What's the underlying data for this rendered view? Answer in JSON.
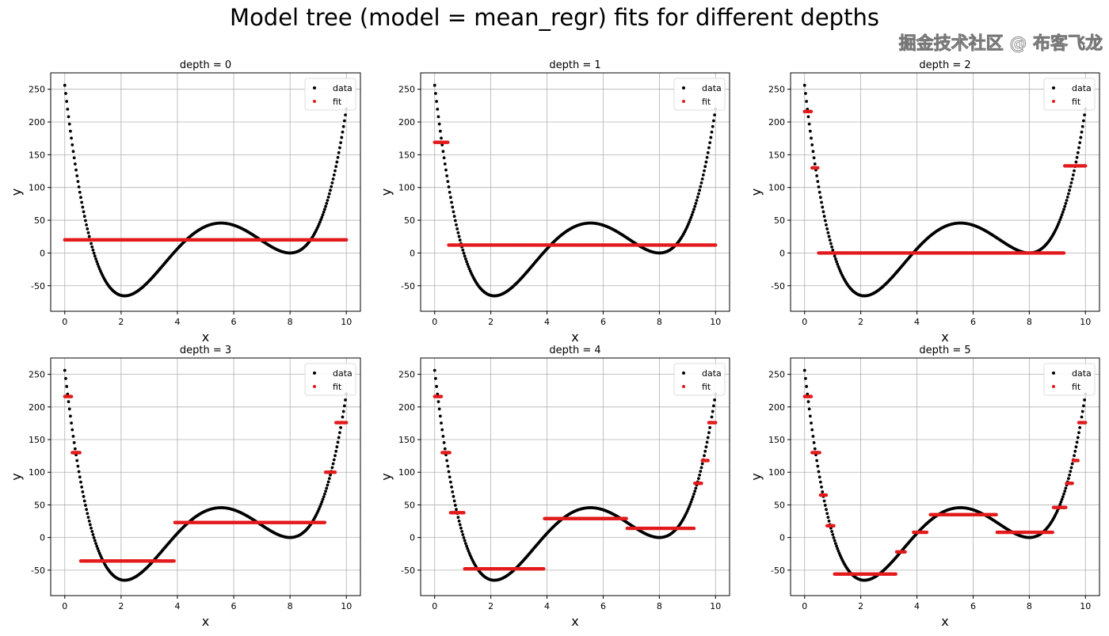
{
  "chart_data": {
    "type": "scatter",
    "title": "Model tree (model = mean_regr) fits for different depths",
    "data_function": {
      "form": "y = (x - 8)^2 * (x^2 - 4.9x + 4)",
      "x_range": [
        0,
        10
      ],
      "n_points": 300
    },
    "xlim": [
      -0.5,
      10.5
    ],
    "ylim": [
      -89,
      275
    ],
    "xticks": [
      0,
      2,
      4,
      6,
      8,
      10
    ],
    "yticks": [
      -50,
      0,
      50,
      100,
      150,
      200,
      250
    ],
    "xlabel": "x",
    "ylabel": "y",
    "grid": true,
    "legend": {
      "placement": "top-right",
      "entries": [
        {
          "label": "data",
          "color": "#000000"
        },
        {
          "label": "fit",
          "color": "#e31a1c"
        }
      ]
    },
    "panels": [
      {
        "title": "depth = 0",
        "segments": [
          [
            0,
            10,
            20
          ]
        ]
      },
      {
        "title": "depth = 1",
        "segments": [
          [
            0,
            0.5,
            169
          ],
          [
            0.5,
            10,
            12
          ]
        ]
      },
      {
        "title": "depth = 2",
        "segments": [
          [
            0,
            0.25,
            216
          ],
          [
            0.25,
            0.5,
            130
          ],
          [
            0.5,
            9.25,
            0
          ],
          [
            9.25,
            10,
            133
          ]
        ]
      },
      {
        "title": "depth = 3",
        "segments": [
          [
            0,
            0.25,
            216
          ],
          [
            0.25,
            0.55,
            130
          ],
          [
            0.55,
            3.9,
            -36
          ],
          [
            3.9,
            9.25,
            23
          ],
          [
            9.25,
            9.6,
            100
          ],
          [
            9.6,
            10,
            176
          ]
        ]
      },
      {
        "title": "depth = 4",
        "segments": [
          [
            0,
            0.25,
            216
          ],
          [
            0.25,
            0.55,
            130
          ],
          [
            0.55,
            1.05,
            38
          ],
          [
            1.05,
            3.9,
            -48
          ],
          [
            3.9,
            6.85,
            29
          ],
          [
            6.85,
            9.25,
            14
          ],
          [
            9.25,
            9.5,
            83
          ],
          [
            9.5,
            9.75,
            118
          ],
          [
            9.75,
            10,
            176
          ]
        ]
      },
      {
        "title": "depth = 5",
        "segments": [
          [
            0,
            0.25,
            216
          ],
          [
            0.25,
            0.55,
            130
          ],
          [
            0.55,
            0.8,
            65
          ],
          [
            0.8,
            1.05,
            18
          ],
          [
            1.05,
            3.25,
            -56
          ],
          [
            3.25,
            3.6,
            -22
          ],
          [
            3.85,
            4.35,
            8
          ],
          [
            4.45,
            6.85,
            35
          ],
          [
            6.85,
            8.85,
            8
          ],
          [
            8.85,
            9.3,
            46
          ],
          [
            9.3,
            9.55,
            83
          ],
          [
            9.55,
            9.75,
            118
          ],
          [
            9.75,
            10,
            176
          ]
        ]
      }
    ],
    "colors": {
      "data": "#000000",
      "fit": "#e31a1c",
      "grid": "#b0b0b0"
    }
  },
  "watermark": "掘金技术社区 @ 布客飞龙"
}
